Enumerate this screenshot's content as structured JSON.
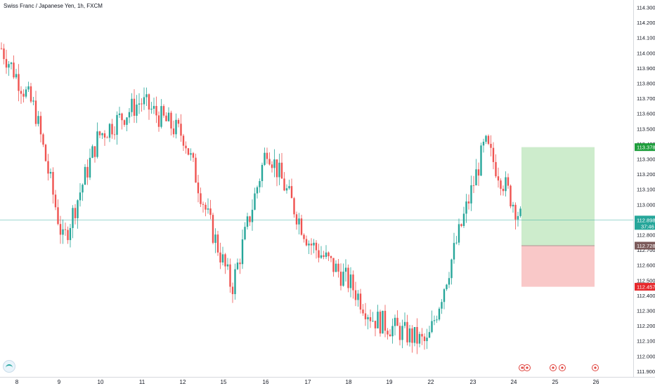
{
  "title": "Swiss Franc / Japanese Yen, 1h, FXCM",
  "icons": {
    "logo": "tradingview-logo-icon",
    "events": "economic-event-icon"
  },
  "colors": {
    "up": "#26a69a",
    "down": "#ef5350",
    "profit_zone": "#cdeccc",
    "loss_zone": "#f9c8c8",
    "last_price_line": "#26a69a",
    "target_tag": "#1e9e3c",
    "stop_tag": "#e6272b",
    "entry_tag": "#7b5a5a",
    "last_tag": "#26a69a"
  },
  "price_axis": {
    "labels": [
      "114.300",
      "114.200",
      "114.100",
      "114.000",
      "113.900",
      "113.800",
      "113.700",
      "113.600",
      "113.500",
      "113.400",
      "113.300",
      "113.200",
      "113.100",
      "113.000",
      "112.900",
      "112.800",
      "112.700",
      "112.600",
      "112.500",
      "112.400",
      "112.300",
      "112.200",
      "112.100",
      "112.000",
      "111.900"
    ]
  },
  "time_axis": {
    "labels": [
      "8",
      "9",
      "10",
      "11",
      "12",
      "15",
      "16",
      "17",
      "18",
      "19",
      "22",
      "23",
      "24",
      "25",
      "26"
    ]
  },
  "price_tags": {
    "target": "113.378",
    "last_price": "112.898",
    "countdown": "37:46",
    "entry": "112.728",
    "stop": "112.457"
  },
  "chart_data": {
    "type": "candlestick",
    "symbol": "Swiss Franc / Japanese Yen",
    "interval": "1h",
    "source": "FXCM",
    "ylim": [
      111.87,
      114.33
    ],
    "x_tick_labels": [
      "8",
      "9",
      "10",
      "11",
      "12",
      "15",
      "16",
      "17",
      "18",
      "19",
      "22",
      "23",
      "24",
      "25",
      "26"
    ],
    "key_points": [
      {
        "x": "8",
        "close": 114.03
      },
      {
        "x": "8-9",
        "close": 113.62
      },
      {
        "x": "9",
        "close": 112.75
      },
      {
        "x": "10",
        "close": 113.45
      },
      {
        "x": "11",
        "close": 113.68
      },
      {
        "x": "12",
        "close": 113.45
      },
      {
        "x": "12-15",
        "close": 112.88
      },
      {
        "x": "15",
        "close": 112.45
      },
      {
        "x": "16",
        "close": 113.38
      },
      {
        "x": "17",
        "close": 112.75
      },
      {
        "x": "18",
        "close": 112.48
      },
      {
        "x": "19",
        "close": 112.25
      },
      {
        "x": "22",
        "close": 112.08
      },
      {
        "x": "23",
        "close": 113.4
      },
      {
        "x": "24",
        "close": 112.898
      }
    ],
    "position": {
      "type": "long",
      "entry": 112.728,
      "target": 113.378,
      "stop": 112.457,
      "last_price": 112.898
    }
  }
}
